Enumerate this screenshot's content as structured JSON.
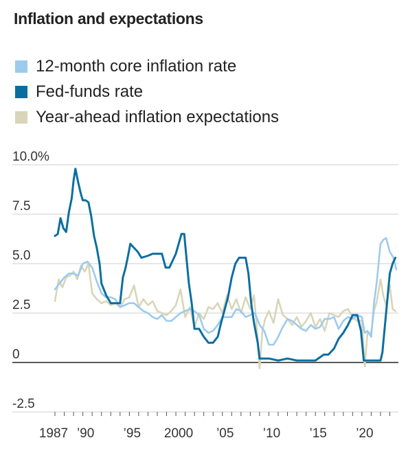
{
  "chart_data": {
    "type": "line",
    "title": "Inflation and expectations",
    "xlabel": "",
    "ylabel": "",
    "ylim": [
      -2.5,
      10.0
    ],
    "xlim": [
      1986.0,
      2024.0
    ],
    "grid": true,
    "legend_position": "top-left",
    "y_ticks": [
      {
        "value": 10.0,
        "label": "10.0%"
      },
      {
        "value": 7.5,
        "label": "7.5"
      },
      {
        "value": 5.0,
        "label": "5.0"
      },
      {
        "value": 2.5,
        "label": "2.5"
      },
      {
        "value": 0,
        "label": "0"
      },
      {
        "value": -2.5,
        "label": "-2.5"
      }
    ],
    "x_ticks": [
      {
        "value": 1987,
        "label": "1987"
      },
      {
        "value": 1990,
        "label": "’90"
      },
      {
        "value": 1995,
        "label": "’95"
      },
      {
        "value": 2000,
        "label": "2000"
      },
      {
        "value": 2005,
        "label": "’05"
      },
      {
        "value": 2010,
        "label": "’10"
      },
      {
        "value": 2015,
        "label": "’15"
      },
      {
        "value": 2020,
        "label": "’20"
      }
    ],
    "series": [
      {
        "name": "Year-ahead inflation expectations",
        "color": "#d8d5b8",
        "x": [
          1987.0,
          1987.4,
          1987.8,
          1988.2,
          1988.6,
          1989.0,
          1989.4,
          1989.8,
          1990.2,
          1990.6,
          1991.0,
          1991.5,
          1992.0,
          1992.5,
          1993.0,
          1993.5,
          1994.0,
          1994.5,
          1995.0,
          1995.5,
          1996.0,
          1996.5,
          1997.0,
          1997.5,
          1998.0,
          1998.5,
          1999.0,
          1999.5,
          2000.0,
          2000.5,
          2001.0,
          2001.5,
          2002.0,
          2002.5,
          2003.0,
          2003.5,
          2004.0,
          2004.5,
          2005.0,
          2005.5,
          2006.0,
          2006.5,
          2007.0,
          2007.5,
          2008.0,
          2008.4,
          2008.8,
          2009.0,
          2009.3,
          2009.6,
          2010.0,
          2010.5,
          2011.0,
          2011.5,
          2012.0,
          2012.5,
          2013.0,
          2013.5,
          2014.0,
          2014.5,
          2015.0,
          2015.5,
          2016.0,
          2016.5,
          2017.0,
          2017.5,
          2018.0,
          2018.5,
          2019.0,
          2019.5,
          2020.0,
          2020.3,
          2020.6,
          2021.0,
          2021.3,
          2021.6,
          2022.0,
          2022.3,
          2022.6,
          2023.0,
          2023.3,
          2023.6
        ],
        "values": [
          3.1,
          4.2,
          3.8,
          4.3,
          4.4,
          4.6,
          4.2,
          4.9,
          4.6,
          5.0,
          3.5,
          3.2,
          3.0,
          3.1,
          2.9,
          3.0,
          2.8,
          3.2,
          3.3,
          3.9,
          2.8,
          3.2,
          2.9,
          3.1,
          2.6,
          2.5,
          2.4,
          2.6,
          2.9,
          3.7,
          2.3,
          2.8,
          1.8,
          2.5,
          2.2,
          2.8,
          2.7,
          3.0,
          2.5,
          3.4,
          2.7,
          3.2,
          2.5,
          3.3,
          2.7,
          3.4,
          1.2,
          -0.3,
          1.6,
          2.2,
          2.6,
          2.0,
          3.2,
          2.4,
          2.2,
          1.9,
          2.3,
          1.8,
          2.1,
          2.5,
          1.8,
          2.2,
          1.6,
          2.5,
          2.4,
          2.3,
          2.6,
          2.7,
          2.3,
          2.1,
          2.1,
          -0.2,
          1.5,
          1.5,
          2.6,
          3.1,
          4.2,
          3.4,
          2.9,
          3.9,
          2.7,
          2.6
        ]
      },
      {
        "name": "12-month core inflation rate",
        "color": "#9ccbee",
        "x": [
          1987.0,
          1987.5,
          1988.0,
          1988.5,
          1989.0,
          1989.5,
          1990.0,
          1990.5,
          1991.0,
          1991.5,
          1992.0,
          1992.5,
          1993.0,
          1993.5,
          1994.0,
          1994.5,
          1995.0,
          1995.5,
          1996.0,
          1996.5,
          1997.0,
          1997.5,
          1998.0,
          1998.5,
          1999.0,
          1999.5,
          2000.0,
          2000.5,
          2001.0,
          2001.5,
          2002.0,
          2002.5,
          2003.0,
          2003.5,
          2004.0,
          2004.5,
          2005.0,
          2005.5,
          2006.0,
          2006.5,
          2007.0,
          2007.5,
          2008.0,
          2008.5,
          2009.0,
          2009.5,
          2010.0,
          2010.5,
          2011.0,
          2011.5,
          2012.0,
          2012.5,
          2013.0,
          2013.5,
          2014.0,
          2014.5,
          2015.0,
          2015.5,
          2016.0,
          2016.5,
          2017.0,
          2017.5,
          2018.0,
          2018.5,
          2019.0,
          2019.5,
          2020.0,
          2020.3,
          2020.6,
          2021.0,
          2021.3,
          2021.6,
          2022.0,
          2022.3,
          2022.6,
          2023.0,
          2023.4,
          2023.7
        ],
        "values": [
          3.7,
          4.0,
          4.3,
          4.5,
          4.5,
          4.4,
          5.0,
          5.1,
          4.8,
          4.1,
          3.5,
          3.3,
          3.3,
          3.2,
          2.8,
          2.9,
          3.0,
          3.0,
          2.8,
          2.6,
          2.5,
          2.3,
          2.2,
          2.4,
          2.1,
          2.1,
          2.3,
          2.5,
          2.6,
          2.7,
          2.6,
          2.4,
          1.7,
          1.5,
          1.6,
          1.9,
          2.3,
          2.3,
          2.3,
          2.7,
          2.6,
          2.3,
          2.4,
          2.5,
          1.9,
          1.6,
          0.9,
          0.9,
          1.3,
          1.8,
          2.2,
          2.1,
          1.9,
          1.7,
          1.6,
          1.9,
          1.7,
          1.8,
          2.2,
          2.2,
          2.3,
          1.7,
          2.1,
          2.3,
          2.2,
          2.4,
          2.3,
          1.5,
          1.6,
          1.3,
          3.0,
          4.1,
          6.0,
          6.2,
          6.3,
          5.6,
          5.3,
          4.7
        ]
      },
      {
        "name": "Fed-funds rate",
        "color": "#0a6ea0",
        "x": [
          1987.0,
          1987.3,
          1987.6,
          1987.9,
          1988.2,
          1988.5,
          1988.8,
          1989.0,
          1989.2,
          1989.5,
          1989.8,
          1990.0,
          1990.3,
          1990.6,
          1990.9,
          1991.2,
          1991.5,
          1991.8,
          1992.0,
          1992.5,
          1993.0,
          1993.5,
          1994.0,
          1994.3,
          1994.6,
          1994.9,
          1995.1,
          1995.5,
          1995.9,
          1996.3,
          1997.0,
          1997.5,
          1998.0,
          1998.5,
          1998.9,
          1999.3,
          1999.7,
          2000.0,
          2000.3,
          2000.6,
          2000.9,
          2001.1,
          2001.4,
          2001.7,
          2002.0,
          2002.5,
          2003.0,
          2003.5,
          2004.0,
          2004.5,
          2004.8,
          2005.2,
          2005.6,
          2006.0,
          2006.4,
          2006.8,
          2007.5,
          2007.8,
          2008.1,
          2008.4,
          2008.8,
          2009.0,
          2010.0,
          2011.0,
          2012.0,
          2013.0,
          2014.0,
          2015.0,
          2015.9,
          2016.4,
          2017.0,
          2017.5,
          2018.0,
          2018.5,
          2019.0,
          2019.5,
          2019.9,
          2020.2,
          2020.5,
          2021.0,
          2022.0,
          2022.2,
          2022.4,
          2022.6,
          2022.8,
          2023.0,
          2023.3,
          2023.6
        ],
        "values": [
          6.4,
          6.5,
          7.3,
          6.8,
          6.6,
          7.6,
          8.3,
          9.2,
          9.8,
          9.1,
          8.5,
          8.2,
          8.2,
          8.1,
          7.4,
          6.4,
          5.8,
          5.0,
          4.0,
          3.4,
          3.0,
          3.0,
          3.0,
          4.3,
          4.8,
          5.5,
          6.0,
          5.8,
          5.6,
          5.3,
          5.4,
          5.5,
          5.5,
          5.5,
          4.8,
          4.8,
          5.2,
          5.5,
          6.0,
          6.5,
          6.5,
          5.5,
          4.0,
          3.0,
          1.7,
          1.7,
          1.3,
          1.0,
          1.0,
          1.3,
          1.9,
          2.6,
          3.3,
          4.3,
          5.0,
          5.3,
          5.3,
          4.5,
          3.0,
          2.0,
          1.0,
          0.2,
          0.2,
          0.1,
          0.2,
          0.1,
          0.1,
          0.1,
          0.4,
          0.4,
          0.7,
          1.2,
          1.5,
          1.9,
          2.4,
          2.4,
          1.6,
          0.1,
          0.1,
          0.1,
          0.1,
          0.5,
          1.5,
          2.5,
          3.5,
          4.5,
          5.0,
          5.3
        ]
      }
    ]
  },
  "legend": {
    "items": [
      {
        "label": "12-month core inflation rate",
        "color": "#9ccbee"
      },
      {
        "label": "Fed-funds rate",
        "color": "#0a6ea0"
      },
      {
        "label": "Year-ahead inflation expectations",
        "color": "#d8d5b8"
      }
    ]
  }
}
